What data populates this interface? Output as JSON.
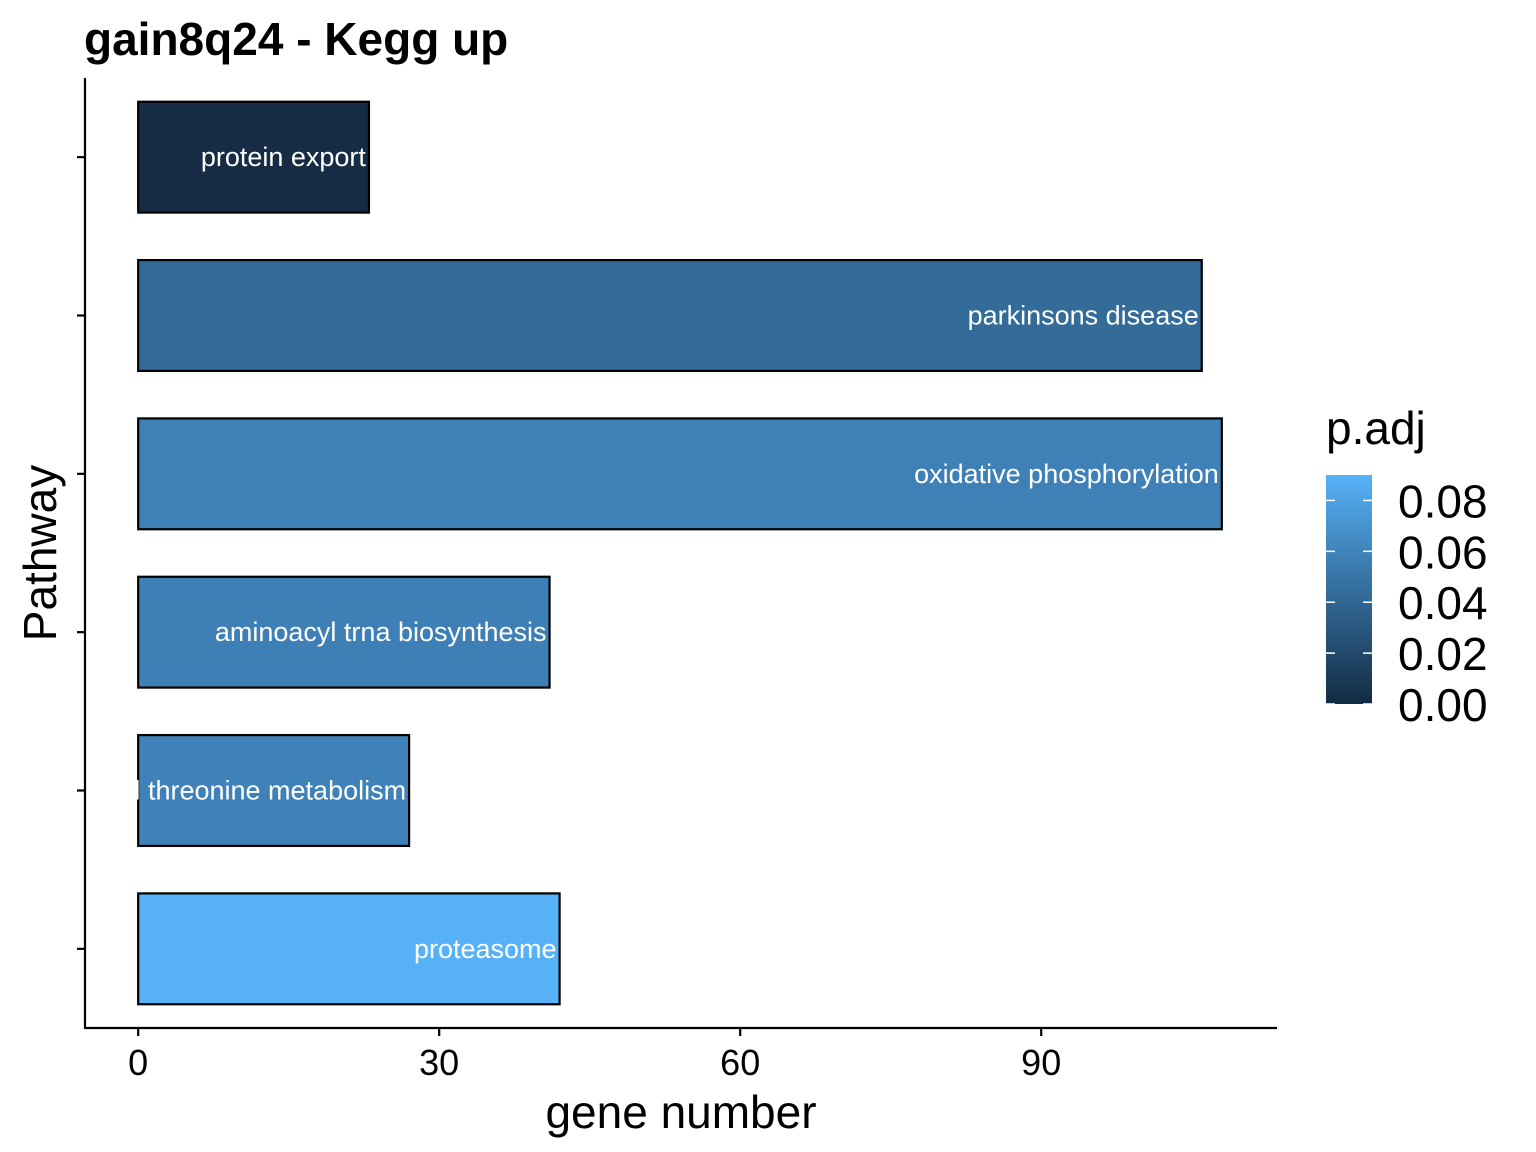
{
  "chart_data": {
    "type": "bar",
    "orientation": "horizontal",
    "title": "gain8q24 - Kegg up",
    "xlabel": "gene number",
    "ylabel": "Pathway",
    "xlim": [
      -5.3,
      113.5
    ],
    "xticks": [
      0,
      30,
      60,
      90
    ],
    "xtick_labels": [
      "0",
      "30",
      "60",
      "90"
    ],
    "categories": [
      "protein export",
      "parkinsons disease",
      "oxidative phosphorylation",
      "aminoacyl trna biosynthesis",
      "glycine serine and threonine metabolism",
      "proteasome"
    ],
    "values": [
      23,
      106,
      108,
      41,
      27,
      42
    ],
    "p_adj": [
      0.0,
      0.04,
      0.05,
      0.05,
      0.05,
      0.09
    ],
    "colors": [
      "#162C45",
      "#336B99",
      "#3F80B7",
      "#3E7FB5",
      "#3F82BA",
      "#56B1F7"
    ],
    "bar_outline": "#000000",
    "legend": {
      "title": "p.adj",
      "position": "right",
      "range": [
        0.0,
        0.09
      ],
      "ticks": [
        0.0,
        0.02,
        0.04,
        0.06,
        0.08
      ],
      "tick_labels": [
        "0.00",
        "0.02",
        "0.04",
        "0.06",
        "0.08"
      ],
      "color_low": "#132B43",
      "color_high": "#56B1F7"
    },
    "grid": false
  }
}
